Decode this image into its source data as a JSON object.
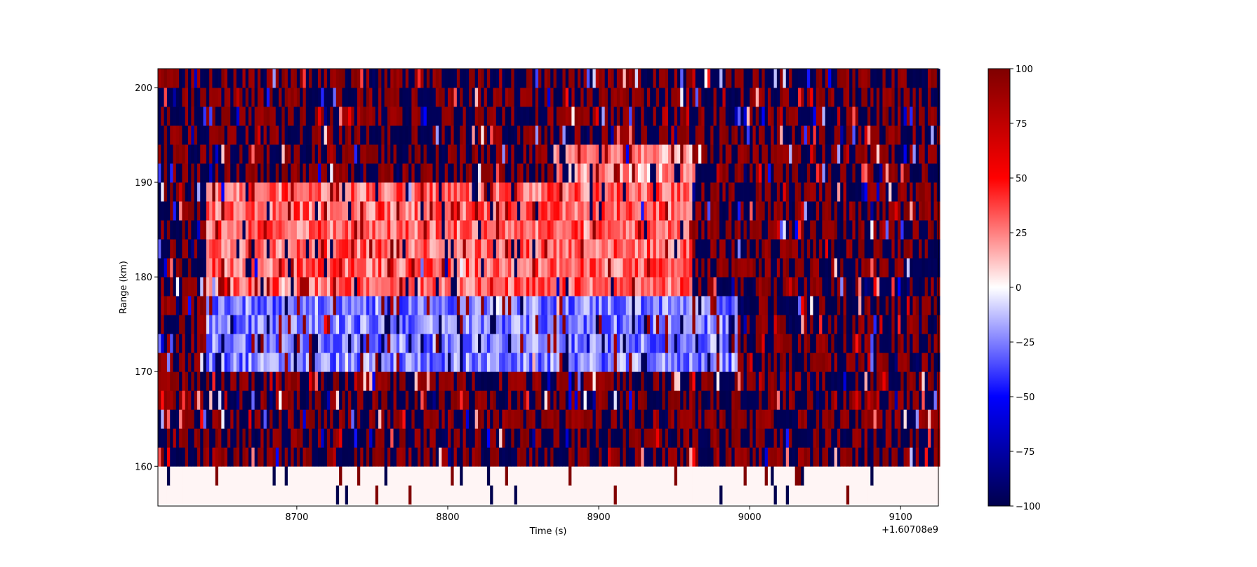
{
  "chart_data": {
    "type": "heatmap",
    "title": "",
    "xlabel": "Time (s)",
    "ylabel": "Range (km)",
    "x_offset_label": "+1.60708e9",
    "xlim": [
      8608,
      9125
    ],
    "ylim": [
      155.8,
      202
    ],
    "x_ticks": [
      8700,
      8800,
      8900,
      9000,
      9100
    ],
    "y_ticks": [
      160,
      170,
      180,
      190,
      200
    ],
    "range_gates_km": [
      157,
      159,
      161,
      163,
      165,
      167,
      169,
      171,
      173,
      175,
      177,
      179,
      181,
      183,
      185,
      187,
      189,
      191,
      193,
      195,
      197,
      199,
      201
    ],
    "colormap": "seismic",
    "colorbar": {
      "vmin": -100,
      "vmax": 100,
      "ticks": [
        -100,
        -75,
        -50,
        -25,
        0,
        25,
        50,
        75,
        100
      ]
    },
    "features": [
      {
        "label": "negative velocity band",
        "gate_range_km": [
          170,
          178
        ],
        "time_range_s": [
          8640,
          8990
        ],
        "value_approx": -25
      },
      {
        "label": "positive velocity band",
        "gate_range_km": [
          179,
          190
        ],
        "time_range_s": [
          8640,
          8960
        ],
        "value_approx": 30
      },
      {
        "label": "positive band upper",
        "gate_range_km": [
          190,
          194
        ],
        "time_range_s": [
          8870,
          8960
        ],
        "value_approx": 20
      },
      {
        "label": "low range near-zero region",
        "gate_range_km": [
          156,
          160
        ],
        "time_range_s": [
          8610,
          9125
        ],
        "value_approx": 0
      }
    ],
    "grid": false,
    "legend": "none"
  }
}
